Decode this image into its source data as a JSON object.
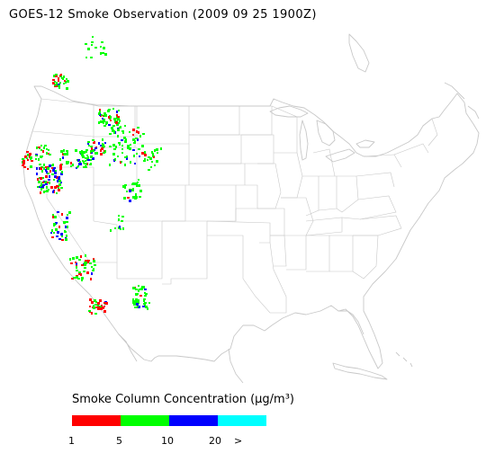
{
  "title": "GOES-12 Smoke Observation (2009 09 25  1900Z)",
  "legend": {
    "title": "Smoke Column Concentration (μg/m³)",
    "colors": [
      "#ff0000",
      "#00ff00",
      "#0000ff",
      "#00ffff"
    ],
    "tick_labels": [
      "1",
      "5",
      "10",
      "20",
      ">"
    ]
  },
  "map": {
    "region": "Contiguous United States",
    "boundary_color": "#c8c8c8"
  }
}
